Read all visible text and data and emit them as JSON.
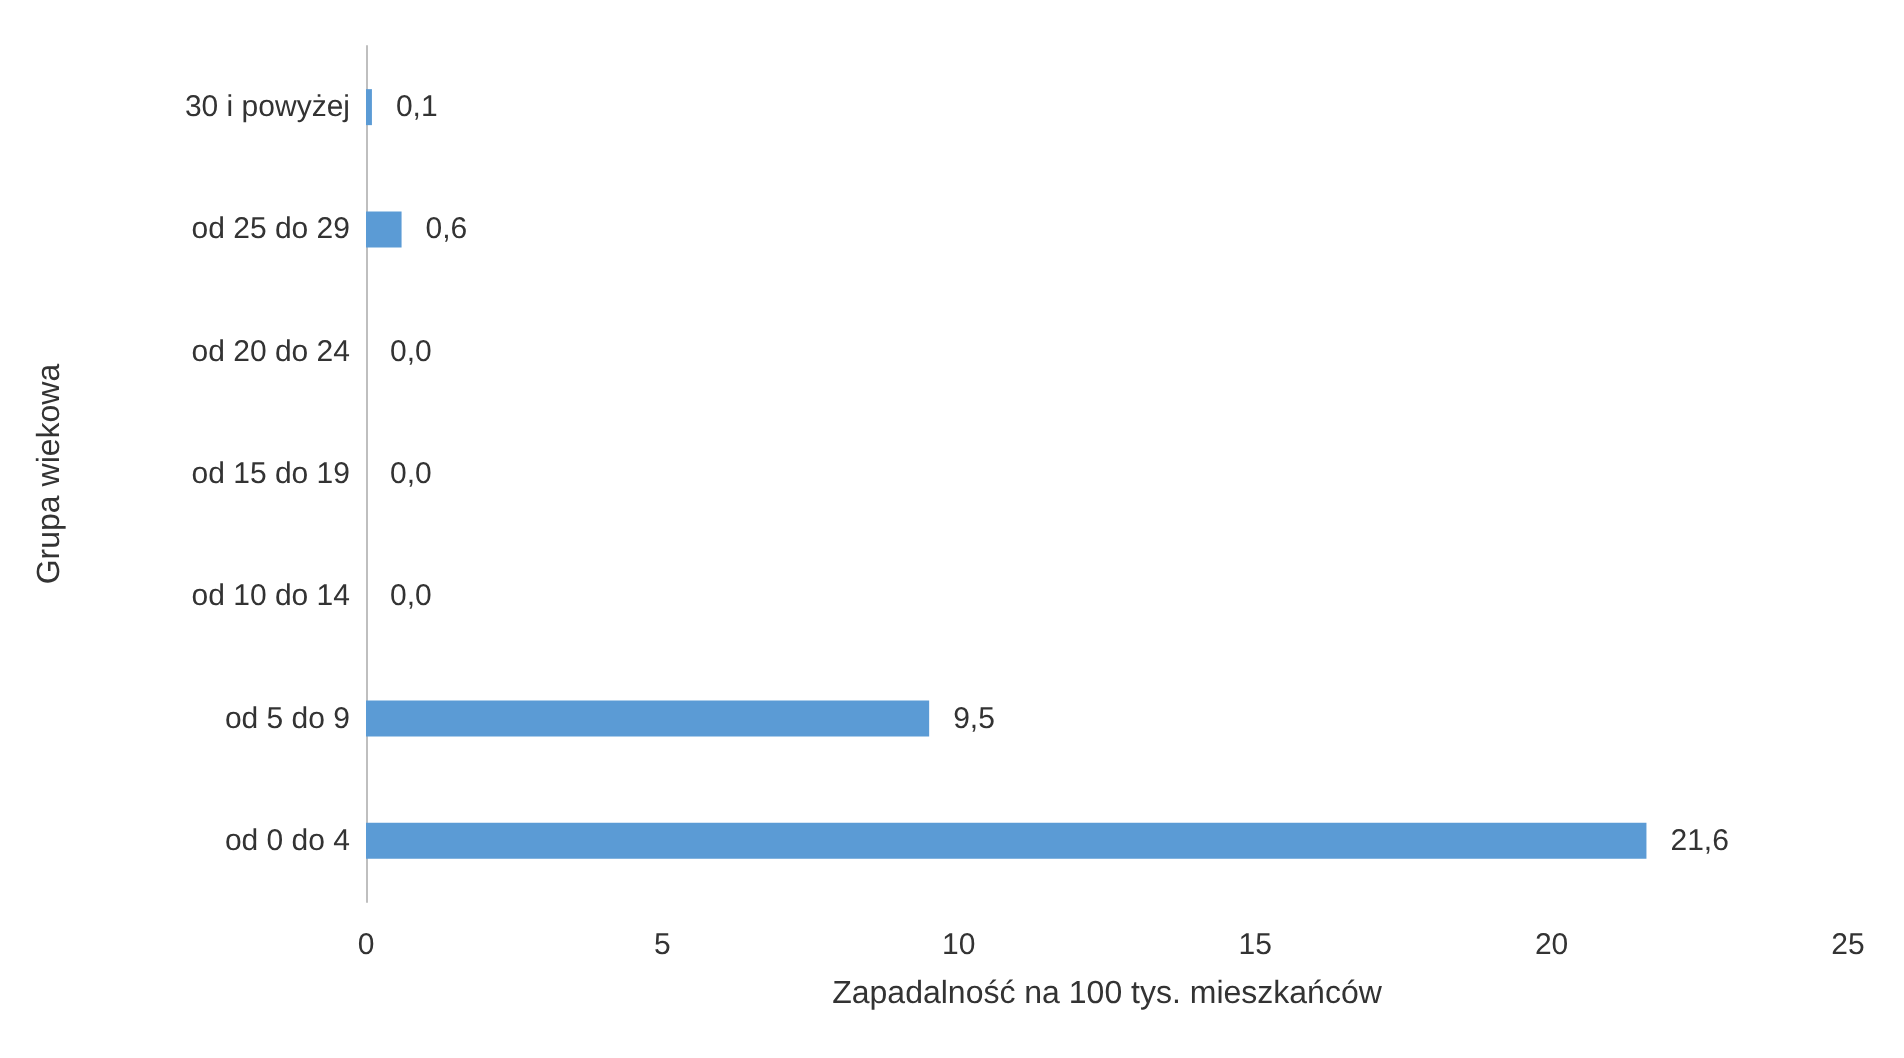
{
  "chart_data": {
    "type": "bar",
    "orientation": "horizontal",
    "xlabel": "Zapadalność na 100 tys. mieszkańców",
    "ylabel": "Grupa wiekowa",
    "categories": [
      "30 i powyżej",
      "od 25 do 29",
      "od 20 do 24",
      "od 15 do 19",
      "od 10 do 14",
      "od 5 do 9",
      "od 0 do 4"
    ],
    "values": [
      0.1,
      0.6,
      0,
      0,
      0,
      9.5,
      21.6
    ],
    "value_labels": [
      "0,1",
      "0,6",
      "0,0",
      "0,0",
      "0,0",
      "9,5",
      "21,6"
    ],
    "color": "#5b9bd5",
    "xlim": [
      0,
      25
    ],
    "xticks": [
      0,
      5,
      10,
      15,
      20,
      25
    ],
    "grid": false
  }
}
